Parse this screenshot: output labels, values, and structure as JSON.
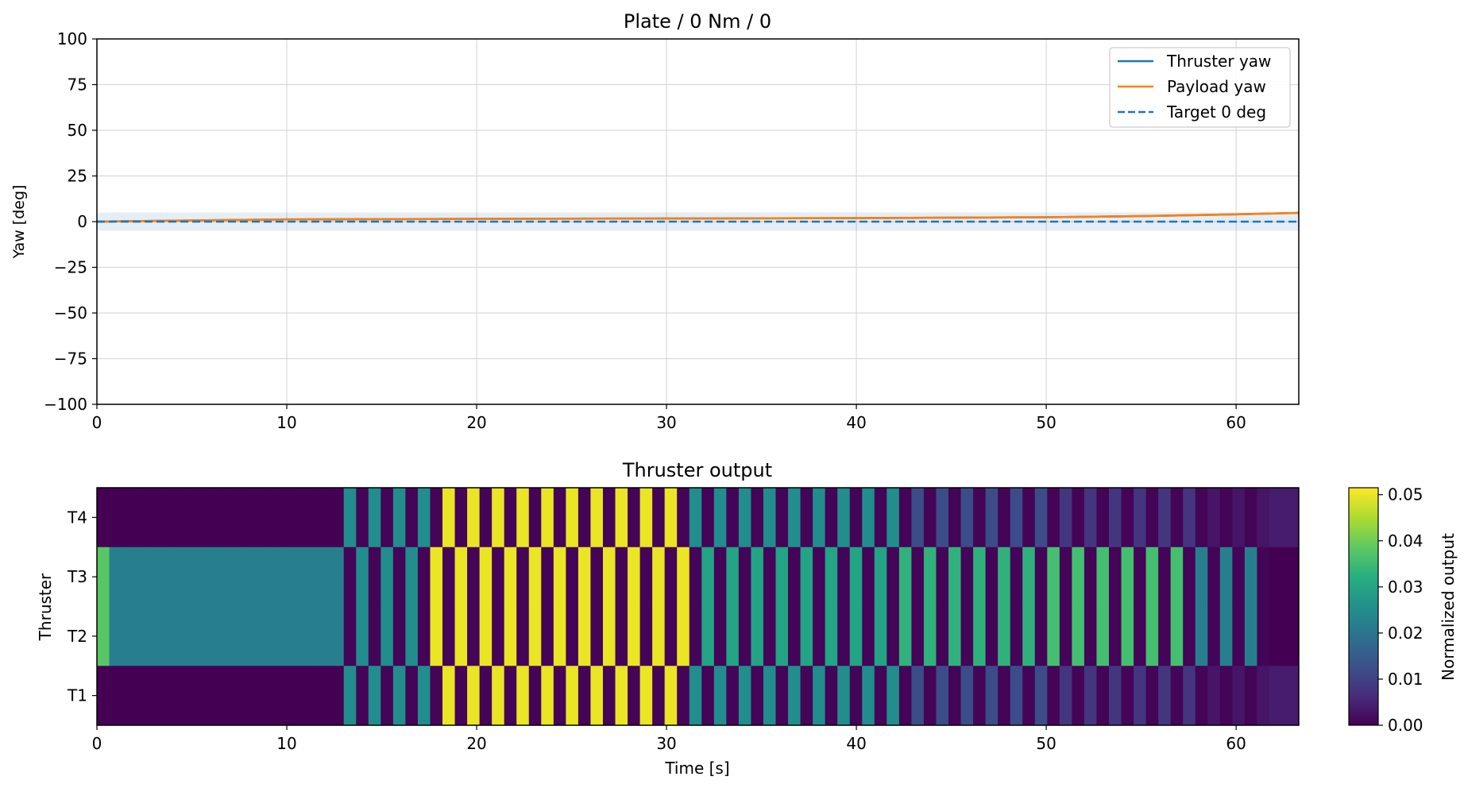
{
  "chart_data": [
    {
      "type": "line",
      "title": "Plate / 0 Nm / 0",
      "xlabel": "",
      "ylabel": "Yaw [deg]",
      "xlim": [
        0,
        63.3
      ],
      "ylim": [
        -100,
        100
      ],
      "xticks": [
        0,
        10,
        20,
        30,
        40,
        50,
        60
      ],
      "yticks": [
        100,
        75,
        50,
        25,
        0,
        -25,
        -50,
        -75,
        -100
      ],
      "ytick_labels": [
        "100",
        "75",
        "50",
        "25",
        "0",
        "−25",
        "−50",
        "−75",
        "−100"
      ],
      "grid": true,
      "legend_position": "upper right",
      "band": {
        "ymin": -5,
        "ymax": 5,
        "color": "#1f77b4"
      },
      "series": [
        {
          "name": "Thruster yaw",
          "color": "#1f77b4",
          "style": "solid",
          "x": [
            0,
            5,
            10,
            20,
            30,
            40,
            50,
            55,
            60,
            63.3
          ],
          "y": [
            0,
            0.6,
            1.2,
            1.5,
            1.7,
            1.9,
            2.4,
            3.0,
            4.0,
            4.8
          ]
        },
        {
          "name": "Payload yaw",
          "color": "#ff7f0e",
          "style": "solid",
          "x": [
            0,
            5,
            10,
            20,
            30,
            40,
            50,
            55,
            60,
            63.3
          ],
          "y": [
            0,
            0.6,
            1.2,
            1.5,
            1.7,
            1.9,
            2.4,
            3.0,
            4.0,
            4.8
          ]
        },
        {
          "name": "Target 0 deg",
          "color": "#1f77b4",
          "style": "dashed",
          "x": [
            0,
            63.3
          ],
          "y": [
            0,
            0
          ]
        }
      ]
    },
    {
      "type": "heatmap",
      "title": "Thruster output",
      "xlabel": "Time [s]",
      "ylabel": "Thruster",
      "xlim": [
        0,
        63.3
      ],
      "xticks": [
        0,
        10,
        20,
        30,
        40,
        50,
        60
      ],
      "rows": [
        "T4",
        "T3",
        "T2",
        "T1"
      ],
      "colormap": "viridis",
      "colorbar": {
        "label": "Normalized output",
        "min": 0,
        "max": 0.0515,
        "ticks": [
          0.0,
          0.01,
          0.02,
          0.03,
          0.04,
          0.05
        ],
        "tick_labels": [
          "0.00",
          "0.01",
          "0.02",
          "0.03",
          "0.04",
          "0.05"
        ]
      },
      "segments": [
        {
          "x0": 0,
          "x1": 12.7,
          "outer": 0,
          "inner": 0.022
        },
        {
          "x0": 12.7,
          "x1": 17.5,
          "outer": 0.025,
          "inner": 0.025
        },
        {
          "x0": 17.5,
          "x1": 31,
          "outer": 0.05,
          "inner": 0.05
        },
        {
          "x0": 31,
          "x1": 42,
          "outer": 0.025,
          "inner": 0.03
        },
        {
          "x0": 42,
          "x1": 50,
          "outer": 0.012,
          "inner": 0.033
        },
        {
          "x0": 50,
          "x1": 58,
          "outer": 0.008,
          "inner": 0.036
        },
        {
          "x0": 58,
          "x1": 62,
          "outer": 0.003,
          "inner": 0.022
        },
        {
          "x0": 62,
          "x1": 63.3,
          "outer": 0.004,
          "inner": 0
        }
      ],
      "pulse_period_s": 0.65
    }
  ]
}
